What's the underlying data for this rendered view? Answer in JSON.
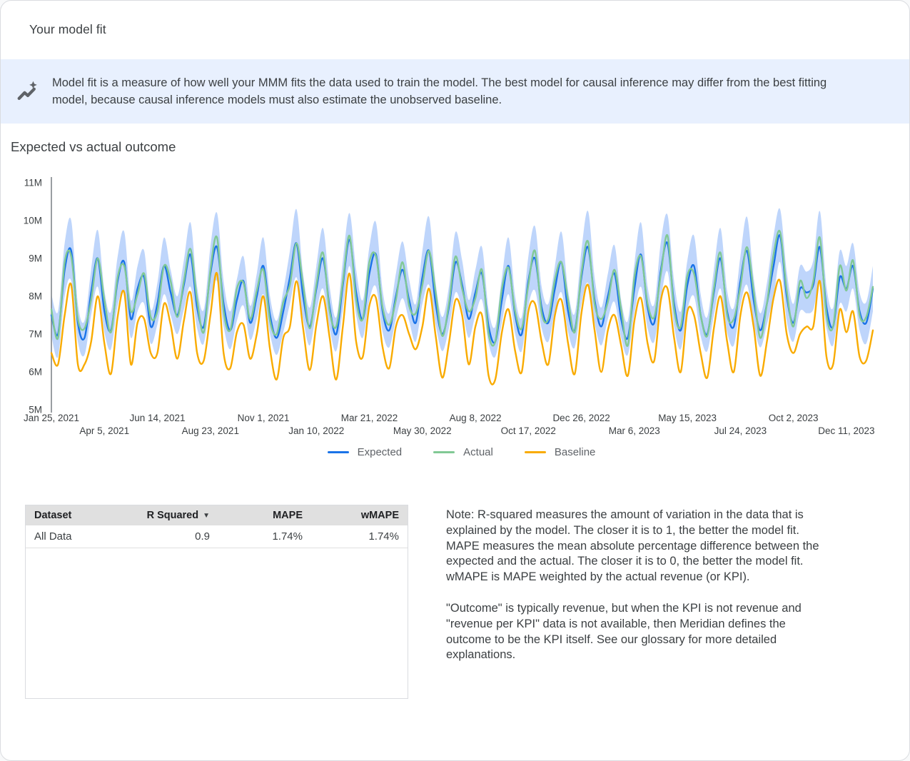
{
  "header": {
    "title": "Your model fit"
  },
  "banner": {
    "icon": "insights-icon",
    "text": "Model fit is a measure of how well your MMM fits the data used to train the model. The best model for causal inference may differ from the best fitting model, because causal inference models must also estimate the unobserved baseline."
  },
  "section": {
    "title": "Expected vs actual outcome"
  },
  "chart_data": {
    "type": "line",
    "title": "Expected vs actual outcome",
    "xlabel": "",
    "ylabel": "",
    "ylim": [
      5,
      11
    ],
    "y_unit": "millions",
    "grid": false,
    "legend_position": "bottom",
    "band_color": "#aecbfa",
    "legend": [
      {
        "name": "Expected",
        "color": "#1a73e8"
      },
      {
        "name": "Actual",
        "color": "#81c995"
      },
      {
        "name": "Baseline",
        "color": "#f9ab00"
      }
    ],
    "y_ticks": [
      {
        "label": "5M",
        "value": 5
      },
      {
        "label": "6M",
        "value": 6
      },
      {
        "label": "7M",
        "value": 7
      },
      {
        "label": "8M",
        "value": 8
      },
      {
        "label": "9M",
        "value": 9
      },
      {
        "label": "10M",
        "value": 10
      },
      {
        "label": "11M",
        "value": 11
      }
    ],
    "x_ticks": [
      {
        "label": "Jan 25, 2021",
        "row": 1
      },
      {
        "label": "Apr 5, 2021",
        "row": 2
      },
      {
        "label": "Jun 14, 2021",
        "row": 1
      },
      {
        "label": "Aug 23, 2021",
        "row": 2
      },
      {
        "label": "Nov 1, 2021",
        "row": 1
      },
      {
        "label": "Jan 10, 2022",
        "row": 2
      },
      {
        "label": "Mar 21, 2022",
        "row": 1
      },
      {
        "label": "May 30, 2022",
        "row": 2
      },
      {
        "label": "Aug 8, 2022",
        "row": 1
      },
      {
        "label": "Oct 17, 2022",
        "row": 2
      },
      {
        "label": "Dec 26, 2022",
        "row": 1
      },
      {
        "label": "Mar 6, 2023",
        "row": 2
      },
      {
        "label": "May 15, 2023",
        "row": 1
      },
      {
        "label": "Jul 24, 2023",
        "row": 2
      },
      {
        "label": "Oct 2, 2023",
        "row": 1
      },
      {
        "label": "Dec 11, 2023",
        "row": 2
      }
    ],
    "points_per_tick": 8,
    "series": {
      "expected": [
        7.5,
        7.0,
        8.7,
        9.2,
        7.3,
        6.9,
        8.1,
        9.0,
        7.6,
        7.1,
        8.4,
        8.9,
        7.4,
        8.2,
        8.5,
        7.2,
        7.8,
        8.8,
        8.1,
        7.5,
        8.3,
        9.1,
        7.7,
        7.2,
        8.6,
        9.3,
        7.8,
        7.1,
        7.9,
        8.4,
        7.3,
        8.0,
        8.8,
        7.5,
        6.9,
        7.6,
        8.5,
        9.4,
        8.0,
        7.2,
        8.2,
        9.0,
        7.7,
        7.0,
        8.3,
        9.5,
        8.1,
        7.4,
        8.6,
        9.1,
        7.6,
        7.1,
        8.0,
        8.7,
        7.9,
        7.3,
        8.5,
        9.2,
        7.8,
        7.0,
        7.7,
        8.9,
        8.3,
        7.4,
        8.1,
        8.6,
        7.2,
        6.8,
        7.9,
        8.8,
        7.5,
        7.0,
        8.4,
        9.0,
        7.7,
        7.3,
        8.2,
        8.9,
        7.6,
        7.1,
        8.5,
        9.3,
        7.9,
        7.2,
        8.0,
        8.6,
        7.4,
        6.9,
        8.2,
        9.1,
        7.7,
        7.3,
        8.7,
        9.4,
        7.8,
        7.1,
        8.3,
        8.8,
        7.5,
        7.0,
        8.1,
        9.0,
        7.6,
        7.2,
        8.4,
        9.2,
        7.9,
        7.1,
        7.8,
        8.8,
        9.6,
        8.0,
        7.3,
        8.2,
        8.1,
        8.3,
        9.3,
        7.7,
        7.2,
        8.5,
        8.2,
        8.8,
        7.6,
        7.3,
        8.2
      ],
      "actual": [
        7.65,
        6.9,
        8.9,
        9.05,
        7.4,
        7.15,
        7.9,
        9.0,
        7.9,
        7.05,
        8.5,
        8.8,
        7.6,
        8.05,
        8.6,
        7.45,
        7.6,
        8.8,
        8.4,
        7.45,
        8.4,
        9.25,
        7.9,
        7.05,
        8.7,
        9.55,
        7.6,
        7.1,
        8.2,
        8.35,
        7.4,
        8.15,
        8.7,
        7.35,
        7.0,
        7.85,
        8.3,
        9.4,
        8.3,
        7.15,
        8.3,
        9.15,
        7.6,
        7.2,
        8.4,
        9.6,
        7.9,
        7.4,
        8.9,
        9.05,
        7.7,
        7.25,
        7.9,
        8.9,
        7.75,
        7.55,
        8.3,
        9.2,
        8.1,
        6.95,
        7.8,
        9.05,
        8.2,
        7.6,
        7.95,
        8.7,
        7.0,
        6.8,
        8.2,
        8.75,
        7.6,
        7.15,
        8.3,
        9.2,
        7.55,
        7.4,
        8.45,
        8.9,
        7.9,
        7.05,
        8.6,
        9.45,
        7.8,
        7.4,
        7.85,
        8.7,
        7.65,
        6.7,
        8.5,
        9.05,
        7.8,
        7.45,
        8.6,
        9.6,
        7.65,
        7.2,
        8.55,
        8.6,
        7.5,
        6.95,
        8.2,
        9.15,
        7.5,
        7.4,
        8.25,
        9.3,
        8.15,
        6.9,
        7.8,
        9.1,
        9.7,
        8.15,
        7.2,
        8.4,
        7.95,
        8.4,
        9.55,
        7.5,
        7.2,
        8.8,
        8.15,
        8.95,
        7.5,
        7.45,
        8.25
      ],
      "baseline": [
        6.5,
        6.2,
        7.5,
        8.3,
        6.2,
        6.2,
        6.8,
        8.0,
        6.75,
        5.95,
        7.45,
        8.1,
        6.2,
        7.3,
        7.4,
        6.5,
        6.5,
        7.8,
        7.25,
        6.35,
        7.35,
        8.1,
        6.5,
        6.3,
        7.5,
        8.6,
        6.5,
        6.1,
        7.05,
        7.25,
        6.35,
        7.0,
        8.0,
        6.6,
        5.8,
        6.9,
        7.2,
        8.4,
        7.15,
        6.05,
        7.25,
        8.0,
        6.9,
        5.8,
        7.2,
        8.6,
        6.8,
        6.4,
        7.75,
        7.95,
        6.65,
        6.1,
        7.2,
        7.5,
        7.0,
        6.6,
        7.2,
        8.2,
        6.95,
        5.85,
        6.75,
        7.9,
        7.5,
        6.2,
        7.2,
        7.5,
        5.9,
        5.8,
        7.05,
        7.65,
        6.55,
        6.0,
        7.6,
        7.8,
        6.8,
        6.2,
        7.5,
        7.9,
        6.75,
        5.95,
        7.55,
        8.3,
        7.1,
        6.0,
        7.1,
        7.5,
        6.7,
        5.9,
        7.35,
        7.95,
        6.75,
        6.3,
        7.9,
        8.2,
        6.9,
        6.0,
        7.6,
        7.5,
        6.5,
        5.85,
        7.15,
        8.0,
        6.8,
        6.0,
        7.5,
        8.1,
        7.2,
        5.9,
        6.8,
        7.95,
        8.4,
        7.0,
        6.5,
        7.0,
        7.2,
        7.2,
        8.4,
        6.4,
        6.2,
        7.65,
        7.05,
        7.6,
        6.4,
        6.3,
        7.1
      ],
      "ci_halfwidth": [
        0.55,
        0.6,
        0.7,
        0.8,
        0.5,
        0.45,
        0.6,
        0.75,
        0.55,
        0.5,
        0.65,
        0.8,
        0.5,
        0.6,
        0.7,
        0.45,
        0.55,
        0.75,
        0.6,
        0.5,
        0.65,
        0.85,
        0.55,
        0.45,
        0.7,
        0.9,
        0.6,
        0.5,
        0.55,
        0.65,
        0.45,
        0.6,
        0.75,
        0.5,
        0.45,
        0.55,
        0.7,
        0.9,
        0.6,
        0.5,
        0.6,
        0.8,
        0.55,
        0.45,
        0.65,
        0.7,
        0.6,
        0.5,
        0.7,
        0.85,
        0.55,
        0.45,
        0.6,
        0.75,
        0.55,
        0.5,
        0.7,
        0.9,
        0.55,
        0.45,
        0.55,
        0.8,
        0.65,
        0.5,
        0.6,
        0.7,
        0.45,
        0.4,
        0.6,
        0.75,
        0.5,
        0.45,
        0.65,
        0.85,
        0.55,
        0.5,
        0.6,
        0.8,
        0.55,
        0.45,
        0.7,
        0.95,
        0.6,
        0.5,
        0.6,
        0.75,
        0.5,
        0.45,
        0.65,
        0.85,
        0.55,
        0.5,
        0.75,
        0.75,
        0.6,
        0.5,
        0.65,
        0.8,
        0.55,
        0.45,
        0.6,
        0.8,
        0.55,
        0.5,
        0.65,
        0.9,
        0.6,
        0.45,
        0.55,
        0.8,
        0.7,
        0.65,
        0.5,
        0.6,
        0.55,
        0.65,
        0.95,
        0.55,
        0.5,
        0.7,
        0.6,
        0.6,
        0.5,
        0.55,
        0.6
      ]
    }
  },
  "table": {
    "headers": [
      "Dataset",
      "R Squared",
      "MAPE",
      "wMAPE"
    ],
    "sorted_by": "R Squared",
    "rows": [
      [
        "All Data",
        "0.9",
        "1.74%",
        "1.74%"
      ]
    ]
  },
  "note": {
    "para1": "Note: R-squared measures the amount of variation in the data that is explained by the model. The closer it is to 1, the better the model fit. MAPE measures the mean absolute percentage difference between the expected and the actual. The closer it is to 0, the better the model fit. wMAPE is MAPE weighted by the actual revenue (or KPI).",
    "para2": "\"Outcome\" is typically revenue, but when the KPI is not revenue and \"revenue per KPI\" data is not available, then Meridian defines the outcome to be the KPI itself. See our glossary for more detailed explanations."
  }
}
